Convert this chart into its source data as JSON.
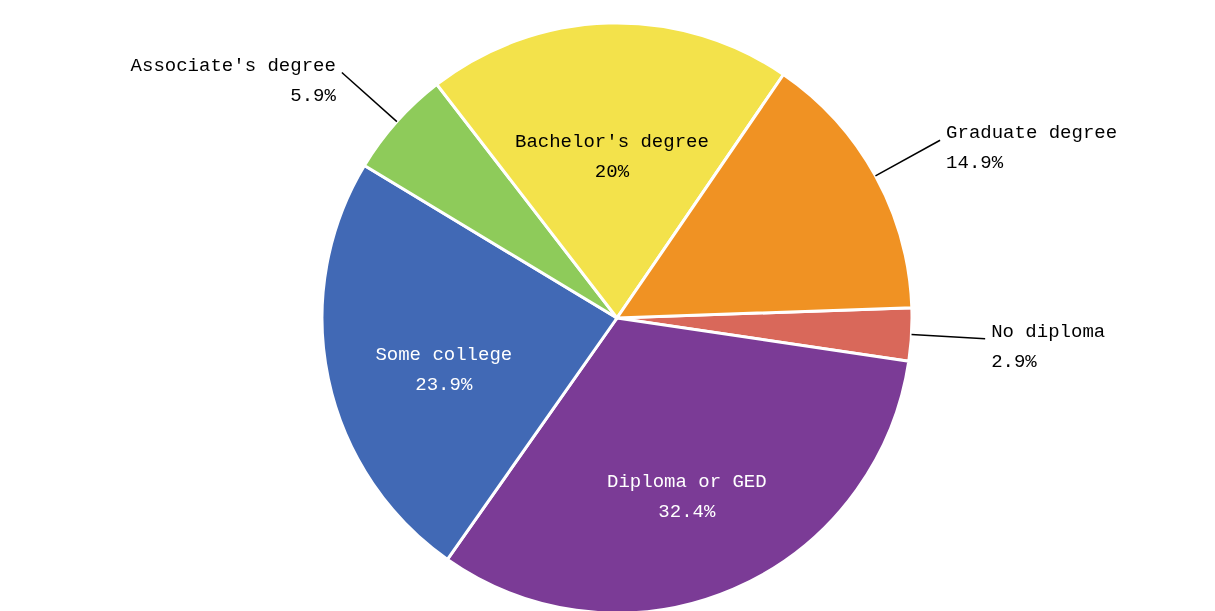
{
  "chart_data": {
    "type": "pie",
    "categories": [
      "No diploma",
      "Diploma or GED",
      "Some college",
      "Associate's degree",
      "Bachelor's degree",
      "Graduate degree"
    ],
    "values": [
      2.9,
      32.4,
      23.9,
      5.9,
      20,
      14.9
    ],
    "value_labels": [
      "2.9%",
      "32.4%",
      "23.9%",
      "5.9%",
      "20%",
      "14.9%"
    ],
    "colors": [
      "#d9685a",
      "#7b3b96",
      "#4169b5",
      "#8ecb5a",
      "#f3e24b",
      "#f09223"
    ],
    "legend": false
  }
}
